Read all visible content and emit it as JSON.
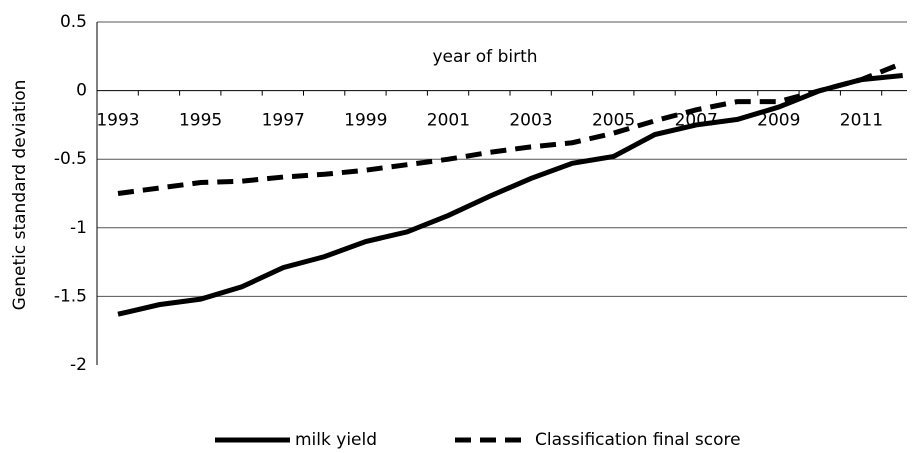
{
  "chart_data": {
    "type": "line",
    "y_label": "Genetic standard deviation",
    "annotation": "year of birth",
    "categories": [
      "1993",
      null,
      "1995",
      null,
      "1997",
      null,
      "1999",
      null,
      "2001",
      null,
      "2003",
      null,
      "2005",
      null,
      "2007",
      null,
      "2009",
      null,
      "2011",
      null
    ],
    "series": [
      {
        "name": "milk yield",
        "color": "#000000",
        "dash": "solid",
        "values": [
          -1.63,
          -1.56,
          -1.52,
          -1.43,
          -1.29,
          -1.21,
          -1.1,
          -1.03,
          -0.91,
          -0.77,
          -0.64,
          -0.53,
          -0.48,
          -0.32,
          -0.25,
          -0.21,
          -0.12,
          0.0,
          0.08,
          0.11
        ]
      },
      {
        "name": "Classification final score",
        "color": "#000000",
        "dash": "dashed",
        "values": [
          -0.75,
          -0.71,
          -0.67,
          -0.66,
          -0.63,
          -0.61,
          -0.58,
          -0.54,
          -0.5,
          -0.45,
          -0.41,
          -0.38,
          -0.31,
          -0.22,
          -0.14,
          -0.08,
          -0.08,
          0.0,
          0.08,
          0.2
        ]
      }
    ],
    "ylim": [
      -2,
      0.5
    ],
    "yticks": [
      0.5,
      0,
      -0.5,
      -1,
      -1.5,
      -2
    ],
    "grid": true,
    "legend": "bottom"
  }
}
